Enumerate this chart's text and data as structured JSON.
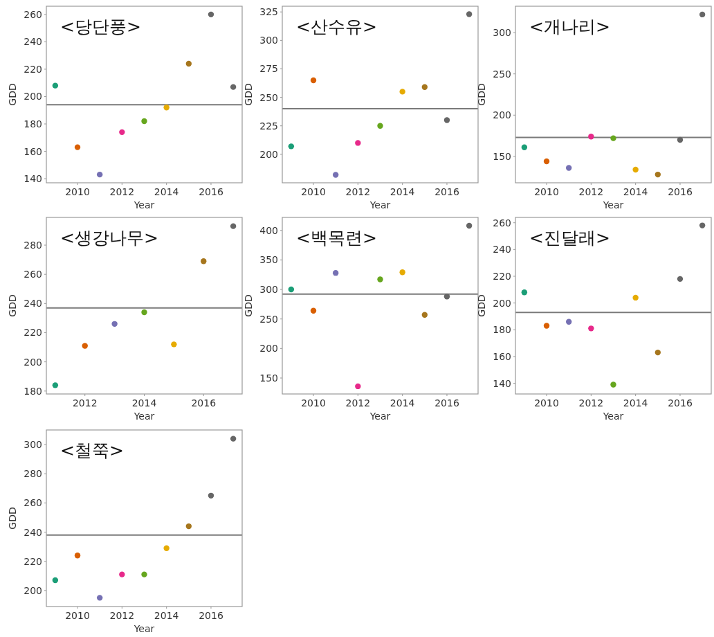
{
  "chart_data": [
    {
      "type": "scatter",
      "title": "<당단풍>",
      "xlabel": "Year",
      "ylabel": "GDD",
      "x": [
        2009,
        2010,
        2011,
        2012,
        2013,
        2014,
        2015,
        2016,
        2017
      ],
      "values": [
        208,
        163,
        143,
        174,
        182,
        192,
        224,
        260,
        207
      ],
      "colors": [
        "#1b9e77",
        "#d95f02",
        "#7570b3",
        "#e7298a",
        "#66a61e",
        "#e6ab02",
        "#a6761d",
        "#666666",
        "#666666"
      ],
      "xlim": [
        2008.6,
        2017.4
      ],
      "xticks": [
        2010,
        2012,
        2014,
        2016
      ],
      "ylim": [
        137,
        266
      ],
      "yticks": [
        140,
        160,
        180,
        200,
        220,
        240,
        260
      ],
      "ref_lines": [
        {
          "axis": "y",
          "value": 194,
          "color": "#7a7a7a"
        }
      ],
      "marker": "circle"
    },
    {
      "type": "scatter",
      "title": "<산수유>",
      "xlabel": "Year",
      "ylabel": "GDD",
      "x": [
        2009,
        2010,
        2011,
        2012,
        2013,
        2014,
        2015,
        2016,
        2017
      ],
      "values": [
        207,
        265,
        182,
        210,
        225,
        255,
        259,
        230,
        323
      ],
      "colors": [
        "#1b9e77",
        "#d95f02",
        "#7570b3",
        "#e7298a",
        "#66a61e",
        "#e6ab02",
        "#a6761d",
        "#666666",
        "#666666"
      ],
      "xlim": [
        2008.6,
        2017.4
      ],
      "xticks": [
        2010,
        2012,
        2014,
        2016
      ],
      "ylim": [
        175,
        330
      ],
      "yticks": [
        200,
        225,
        250,
        275,
        300,
        325
      ],
      "ref_lines": [
        {
          "axis": "y",
          "value": 240,
          "color": "#7a7a7a"
        }
      ],
      "marker": "circle"
    },
    {
      "type": "scatter",
      "title": "<개나리>",
      "xlabel": "Year",
      "ylabel": "GDD",
      "x": [
        2009,
        2010,
        2011,
        2012,
        2013,
        2014,
        2015,
        2016,
        2017
      ],
      "values": [
        161,
        144,
        136,
        174,
        172,
        134,
        128,
        170,
        322
      ],
      "colors": [
        "#1b9e77",
        "#d95f02",
        "#7570b3",
        "#e7298a",
        "#66a61e",
        "#e6ab02",
        "#a6761d",
        "#666666",
        "#666666"
      ],
      "xlim": [
        2008.6,
        2017.4
      ],
      "xticks": [
        2010,
        2012,
        2014,
        2016
      ],
      "ylim": [
        118,
        332
      ],
      "yticks": [
        150,
        200,
        250,
        300
      ],
      "ref_lines": [
        {
          "axis": "y",
          "value": 173,
          "color": "#7a7a7a"
        }
      ],
      "marker": "circle"
    },
    {
      "type": "scatter",
      "title": "<생강나무>",
      "xlabel": "Year",
      "ylabel": "GDD",
      "x": [
        2011,
        2012,
        2013,
        2014,
        2015,
        2016,
        2017
      ],
      "values": [
        184,
        211,
        226,
        234,
        212,
        269,
        293
      ],
      "colors": [
        "#1b9e77",
        "#d95f02",
        "#7570b3",
        "#66a61e",
        "#e6ab02",
        "#a6761d",
        "#666666"
      ],
      "xlim": [
        2010.7,
        2017.3
      ],
      "xticks": [
        2012,
        2014,
        2016
      ],
      "ylim": [
        178,
        299
      ],
      "yticks": [
        180,
        200,
        220,
        240,
        260,
        280
      ],
      "ref_lines": [
        {
          "axis": "y",
          "value": 237,
          "color": "#7a7a7a"
        }
      ],
      "marker": "circle"
    },
    {
      "type": "scatter",
      "title": "<백목련>",
      "xlabel": "Year",
      "ylabel": "GDD",
      "x": [
        2009,
        2010,
        2011,
        2012,
        2013,
        2014,
        2015,
        2016,
        2017
      ],
      "values": [
        300,
        264,
        328,
        136,
        317,
        329,
        257,
        288,
        408
      ],
      "colors": [
        "#1b9e77",
        "#d95f02",
        "#7570b3",
        "#e7298a",
        "#66a61e",
        "#e6ab02",
        "#a6761d",
        "#666666",
        "#666666"
      ],
      "xlim": [
        2008.6,
        2017.4
      ],
      "xticks": [
        2010,
        2012,
        2014,
        2016
      ],
      "ylim": [
        123,
        422
      ],
      "yticks": [
        150,
        200,
        250,
        300,
        350,
        400
      ],
      "ref_lines": [
        {
          "axis": "y",
          "value": 292,
          "color": "#7a7a7a"
        }
      ],
      "marker": "circle"
    },
    {
      "type": "scatter",
      "title": "<진달래>",
      "xlabel": "Year",
      "ylabel": "GDD",
      "x": [
        2009,
        2010,
        2011,
        2012,
        2013,
        2014,
        2015,
        2016,
        2017
      ],
      "values": [
        208,
        183,
        186,
        181,
        139,
        204,
        163,
        218,
        258
      ],
      "colors": [
        "#1b9e77",
        "#d95f02",
        "#7570b3",
        "#e7298a",
        "#66a61e",
        "#e6ab02",
        "#a6761d",
        "#666666",
        "#666666"
      ],
      "xlim": [
        2008.6,
        2017.4
      ],
      "xticks": [
        2010,
        2012,
        2014,
        2016
      ],
      "ylim": [
        132,
        264
      ],
      "yticks": [
        140,
        160,
        180,
        200,
        220,
        240,
        260
      ],
      "ref_lines": [
        {
          "axis": "y",
          "value": 193,
          "color": "#7a7a7a"
        }
      ],
      "marker": "circle"
    },
    {
      "type": "scatter",
      "title": "<철쭉>",
      "xlabel": "Year",
      "ylabel": "GDD",
      "x": [
        2009,
        2010,
        2011,
        2012,
        2013,
        2014,
        2015,
        2016,
        2017
      ],
      "values": [
        207,
        224,
        195,
        211,
        211,
        229,
        244,
        265,
        304
      ],
      "colors": [
        "#1b9e77",
        "#d95f02",
        "#7570b3",
        "#e7298a",
        "#66a61e",
        "#e6ab02",
        "#a6761d",
        "#666666",
        "#666666"
      ],
      "xlim": [
        2008.6,
        2017.4
      ],
      "xticks": [
        2010,
        2012,
        2014,
        2016
      ],
      "ylim": [
        189,
        310
      ],
      "yticks": [
        200,
        220,
        240,
        260,
        280,
        300
      ],
      "ref_lines": [
        {
          "axis": "y",
          "value": 238,
          "color": "#7a7a7a"
        }
      ],
      "marker": "circle"
    }
  ]
}
